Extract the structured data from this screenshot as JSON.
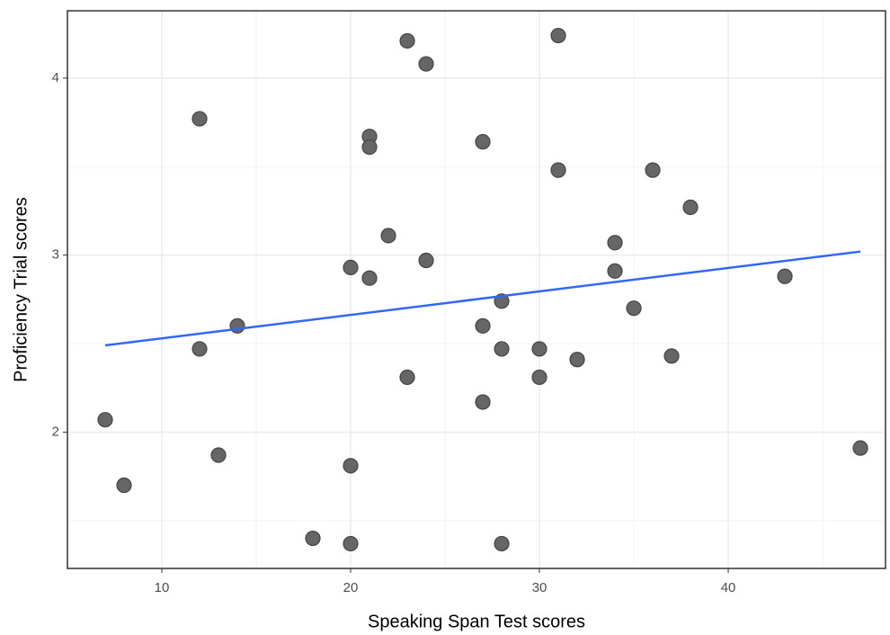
{
  "chart_data": {
    "type": "scatter",
    "x_label": "Speaking Span Test scores",
    "y_label": "Proficiency Trial scores",
    "x": [
      7,
      8,
      12,
      12,
      13,
      14,
      18,
      20,
      20,
      20,
      21,
      21,
      21,
      22,
      23,
      23,
      24,
      24,
      27,
      27,
      27,
      28,
      28,
      28,
      30,
      30,
      31,
      31,
      32,
      34,
      34,
      35,
      36,
      37,
      38,
      43,
      47
    ],
    "values": [
      2.07,
      1.7,
      3.77,
      2.47,
      1.87,
      2.6,
      1.4,
      2.93,
      1.81,
      1.37,
      3.67,
      3.61,
      2.87,
      3.11,
      4.21,
      2.31,
      4.08,
      2.97,
      3.64,
      2.6,
      2.17,
      2.74,
      2.47,
      1.37,
      2.47,
      2.31,
      4.24,
      3.48,
      2.41,
      3.07,
      2.91,
      2.7,
      3.48,
      2.43,
      3.27,
      2.88,
      1.91
    ],
    "color": "#666666",
    "trend": {
      "x": [
        7,
        47
      ],
      "values": [
        2.49,
        3.02
      ],
      "color": "#3366ff"
    },
    "xlim": [
      5,
      48.33
    ],
    "ylim": [
      1.23,
      4.38
    ],
    "xticks": [
      10,
      20,
      30,
      40
    ],
    "yticks": [
      2,
      3,
      4
    ],
    "x_minor_grid": [
      15,
      25,
      35,
      45
    ],
    "y_minor_grid": [
      1.5,
      2.5,
      3.5
    ],
    "grid": true
  }
}
